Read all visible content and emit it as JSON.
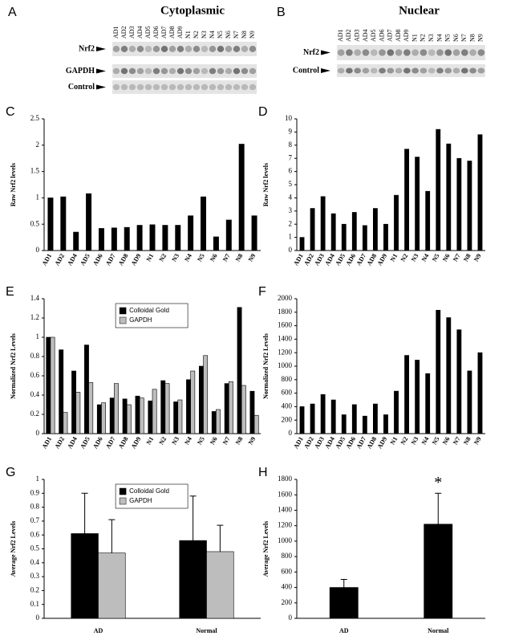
{
  "blots": [
    {
      "panel": "A",
      "title": "Cytoplasmic",
      "lanes": [
        "AD1",
        "AD2",
        "AD3",
        "AD4",
        "AD5",
        "AD6",
        "AD7",
        "AD8",
        "AD9",
        "N1",
        "N2",
        "N3",
        "N4",
        "N5",
        "N6",
        "N7",
        "N8",
        "N9"
      ],
      "rows": [
        "Nrf2",
        "GAPDH",
        "Control"
      ]
    },
    {
      "panel": "B",
      "title": "Nuclear",
      "lanes": [
        "AD1",
        "AD2",
        "AD3",
        "AD4",
        "AD5",
        "AD6",
        "AD7",
        "AD8",
        "AD9",
        "N1",
        "N2",
        "N3",
        "N4",
        "N5",
        "N6",
        "N7",
        "N8",
        "N9"
      ],
      "rows": [
        "Nrf2",
        "Control"
      ]
    }
  ],
  "chart_data": [
    {
      "type": "bar",
      "panel": "C",
      "ylabel": "Raw Nrf2 levels",
      "categories": [
        "AD1",
        "AD2",
        "AD4",
        "AD5",
        "AD6",
        "AD7",
        "AD8",
        "AD9",
        "N1",
        "N2",
        "N3",
        "N4",
        "N5",
        "N6",
        "N7",
        "N8",
        "N9"
      ],
      "values": [
        1.0,
        1.02,
        0.35,
        1.08,
        0.42,
        0.43,
        0.44,
        0.48,
        0.49,
        0.48,
        0.48,
        0.66,
        1.02,
        0.26,
        0.58,
        2.02,
        0.66
      ],
      "color": "#000000",
      "ylim": [
        0,
        2.5
      ],
      "yticks": [
        0,
        0.5,
        1,
        1.5,
        2,
        2.5
      ]
    },
    {
      "type": "bar",
      "panel": "D",
      "ylabel": "Raw Nrf2 levels",
      "categories": [
        "AD1",
        "AD2",
        "AD3",
        "AD4",
        "AD5",
        "AD6",
        "AD7",
        "AD8",
        "AD9",
        "N1",
        "N2",
        "N3",
        "N4",
        "N5",
        "N6",
        "N7",
        "N8",
        "N9"
      ],
      "values": [
        1.0,
        3.2,
        4.1,
        2.8,
        2.0,
        2.9,
        1.9,
        3.2,
        2.0,
        4.2,
        7.7,
        7.1,
        4.5,
        9.2,
        8.1,
        7.0,
        6.8,
        8.8
      ],
      "color": "#000000",
      "ylim": [
        0,
        10
      ],
      "yticks": [
        0,
        1,
        2,
        3,
        4,
        5,
        6,
        7,
        8,
        9,
        10
      ]
    },
    {
      "type": "bar",
      "panel": "E",
      "ylabel": "Normalized Nrf2 Levels",
      "categories": [
        "AD1",
        "AD2",
        "AD4",
        "AD5",
        "AD6",
        "AD7",
        "AD8",
        "AD9",
        "N1",
        "N2",
        "N3",
        "N4",
        "N5",
        "N6",
        "N7",
        "N8",
        "N9"
      ],
      "series": [
        {
          "name": "Colloidal Gold",
          "color": "#000000",
          "values": [
            1.0,
            0.87,
            0.65,
            0.92,
            0.3,
            0.37,
            0.36,
            0.39,
            0.34,
            0.55,
            0.33,
            0.56,
            0.7,
            0.23,
            0.52,
            1.31,
            0.44
          ]
        },
        {
          "name": "GAPDH",
          "color": "#bdbdbd",
          "values": [
            1.0,
            0.22,
            0.43,
            0.53,
            0.32,
            0.52,
            0.3,
            0.37,
            0.46,
            0.52,
            0.35,
            0.65,
            0.81,
            0.25,
            0.54,
            0.5,
            0.19
          ]
        }
      ],
      "legend": "top",
      "ylim": [
        0,
        1.4
      ],
      "yticks": [
        0,
        0.2,
        0.4,
        0.6,
        0.8,
        1,
        1.2,
        1.4
      ]
    },
    {
      "type": "bar",
      "panel": "F",
      "ylabel": "Normalized Nrf2 Levels",
      "categories": [
        "AD1",
        "AD2",
        "AD3",
        "AD4",
        "AD5",
        "AD6",
        "AD7",
        "AD8",
        "AD9",
        "N1",
        "N2",
        "N3",
        "N4",
        "N5",
        "N6",
        "N7",
        "N8",
        "N9"
      ],
      "values": [
        400,
        440,
        580,
        500,
        280,
        430,
        260,
        440,
        280,
        630,
        1160,
        1090,
        890,
        1830,
        1720,
        1540,
        930,
        1200
      ],
      "color": "#000000",
      "ylim": [
        0,
        2000
      ],
      "yticks": [
        0,
        200,
        400,
        600,
        800,
        1000,
        1200,
        1400,
        1600,
        1800,
        2000
      ]
    },
    {
      "type": "bar",
      "panel": "G",
      "ylabel": "Average Nrf2 Levels",
      "categories": [
        "AD",
        "Normal"
      ],
      "series": [
        {
          "name": "Colloidal Gold",
          "color": "#000000",
          "values": [
            0.61,
            0.56
          ],
          "errors": [
            0.29,
            0.32
          ]
        },
        {
          "name": "GAPDH",
          "color": "#bdbdbd",
          "values": [
            0.47,
            0.48
          ],
          "errors": [
            0.24,
            0.19
          ]
        }
      ],
      "legend": "top",
      "ylim": [
        0,
        1
      ],
      "yticks": [
        0,
        0.1,
        0.2,
        0.3,
        0.4,
        0.5,
        0.6,
        0.7,
        0.8,
        0.9,
        1
      ]
    },
    {
      "type": "bar",
      "panel": "H",
      "ylabel": "Average Nrf2 Levels",
      "categories": [
        "AD",
        "Normal"
      ],
      "values": [
        400,
        1220
      ],
      "errors": [
        105,
        400
      ],
      "color": "#000000",
      "annotation": "*",
      "ylim": [
        0,
        1800
      ],
      "yticks": [
        0,
        200,
        400,
        600,
        800,
        1000,
        1200,
        1400,
        1600,
        1800
      ]
    }
  ]
}
